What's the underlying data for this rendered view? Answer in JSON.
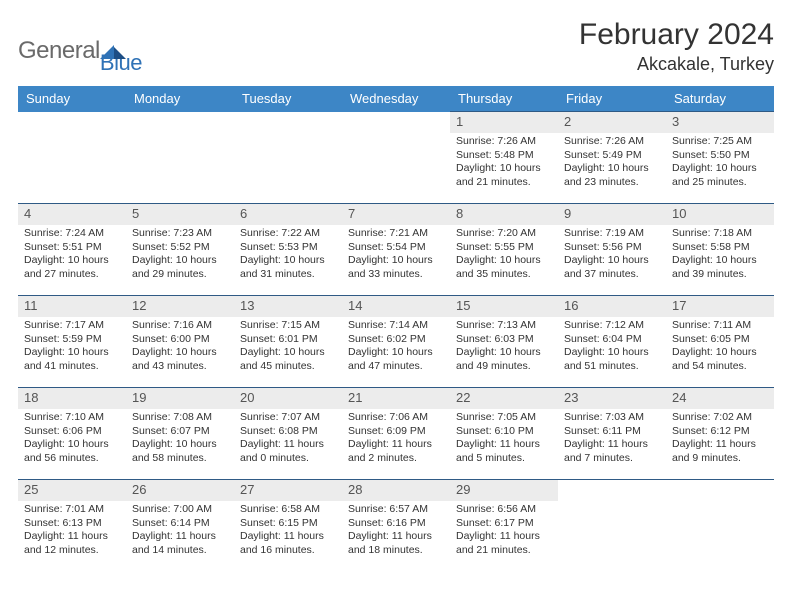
{
  "brand": {
    "part1": "General",
    "part2": "Blue"
  },
  "title": {
    "month": "February 2024",
    "location": "Akcakale, Turkey"
  },
  "colors": {
    "header_bg": "#3d86c6",
    "rule": "#2f5a85",
    "daynum_bg": "#ececec",
    "text": "#333333"
  },
  "daysOfWeek": [
    "Sunday",
    "Monday",
    "Tuesday",
    "Wednesday",
    "Thursday",
    "Friday",
    "Saturday"
  ],
  "weeks": [
    [
      null,
      null,
      null,
      null,
      {
        "n": "1",
        "sr": "Sunrise: 7:26 AM",
        "ss": "Sunset: 5:48 PM",
        "d1": "Daylight: 10 hours",
        "d2": "and 21 minutes."
      },
      {
        "n": "2",
        "sr": "Sunrise: 7:26 AM",
        "ss": "Sunset: 5:49 PM",
        "d1": "Daylight: 10 hours",
        "d2": "and 23 minutes."
      },
      {
        "n": "3",
        "sr": "Sunrise: 7:25 AM",
        "ss": "Sunset: 5:50 PM",
        "d1": "Daylight: 10 hours",
        "d2": "and 25 minutes."
      }
    ],
    [
      {
        "n": "4",
        "sr": "Sunrise: 7:24 AM",
        "ss": "Sunset: 5:51 PM",
        "d1": "Daylight: 10 hours",
        "d2": "and 27 minutes."
      },
      {
        "n": "5",
        "sr": "Sunrise: 7:23 AM",
        "ss": "Sunset: 5:52 PM",
        "d1": "Daylight: 10 hours",
        "d2": "and 29 minutes."
      },
      {
        "n": "6",
        "sr": "Sunrise: 7:22 AM",
        "ss": "Sunset: 5:53 PM",
        "d1": "Daylight: 10 hours",
        "d2": "and 31 minutes."
      },
      {
        "n": "7",
        "sr": "Sunrise: 7:21 AM",
        "ss": "Sunset: 5:54 PM",
        "d1": "Daylight: 10 hours",
        "d2": "and 33 minutes."
      },
      {
        "n": "8",
        "sr": "Sunrise: 7:20 AM",
        "ss": "Sunset: 5:55 PM",
        "d1": "Daylight: 10 hours",
        "d2": "and 35 minutes."
      },
      {
        "n": "9",
        "sr": "Sunrise: 7:19 AM",
        "ss": "Sunset: 5:56 PM",
        "d1": "Daylight: 10 hours",
        "d2": "and 37 minutes."
      },
      {
        "n": "10",
        "sr": "Sunrise: 7:18 AM",
        "ss": "Sunset: 5:58 PM",
        "d1": "Daylight: 10 hours",
        "d2": "and 39 minutes."
      }
    ],
    [
      {
        "n": "11",
        "sr": "Sunrise: 7:17 AM",
        "ss": "Sunset: 5:59 PM",
        "d1": "Daylight: 10 hours",
        "d2": "and 41 minutes."
      },
      {
        "n": "12",
        "sr": "Sunrise: 7:16 AM",
        "ss": "Sunset: 6:00 PM",
        "d1": "Daylight: 10 hours",
        "d2": "and 43 minutes."
      },
      {
        "n": "13",
        "sr": "Sunrise: 7:15 AM",
        "ss": "Sunset: 6:01 PM",
        "d1": "Daylight: 10 hours",
        "d2": "and 45 minutes."
      },
      {
        "n": "14",
        "sr": "Sunrise: 7:14 AM",
        "ss": "Sunset: 6:02 PM",
        "d1": "Daylight: 10 hours",
        "d2": "and 47 minutes."
      },
      {
        "n": "15",
        "sr": "Sunrise: 7:13 AM",
        "ss": "Sunset: 6:03 PM",
        "d1": "Daylight: 10 hours",
        "d2": "and 49 minutes."
      },
      {
        "n": "16",
        "sr": "Sunrise: 7:12 AM",
        "ss": "Sunset: 6:04 PM",
        "d1": "Daylight: 10 hours",
        "d2": "and 51 minutes."
      },
      {
        "n": "17",
        "sr": "Sunrise: 7:11 AM",
        "ss": "Sunset: 6:05 PM",
        "d1": "Daylight: 10 hours",
        "d2": "and 54 minutes."
      }
    ],
    [
      {
        "n": "18",
        "sr": "Sunrise: 7:10 AM",
        "ss": "Sunset: 6:06 PM",
        "d1": "Daylight: 10 hours",
        "d2": "and 56 minutes."
      },
      {
        "n": "19",
        "sr": "Sunrise: 7:08 AM",
        "ss": "Sunset: 6:07 PM",
        "d1": "Daylight: 10 hours",
        "d2": "and 58 minutes."
      },
      {
        "n": "20",
        "sr": "Sunrise: 7:07 AM",
        "ss": "Sunset: 6:08 PM",
        "d1": "Daylight: 11 hours",
        "d2": "and 0 minutes."
      },
      {
        "n": "21",
        "sr": "Sunrise: 7:06 AM",
        "ss": "Sunset: 6:09 PM",
        "d1": "Daylight: 11 hours",
        "d2": "and 2 minutes."
      },
      {
        "n": "22",
        "sr": "Sunrise: 7:05 AM",
        "ss": "Sunset: 6:10 PM",
        "d1": "Daylight: 11 hours",
        "d2": "and 5 minutes."
      },
      {
        "n": "23",
        "sr": "Sunrise: 7:03 AM",
        "ss": "Sunset: 6:11 PM",
        "d1": "Daylight: 11 hours",
        "d2": "and 7 minutes."
      },
      {
        "n": "24",
        "sr": "Sunrise: 7:02 AM",
        "ss": "Sunset: 6:12 PM",
        "d1": "Daylight: 11 hours",
        "d2": "and 9 minutes."
      }
    ],
    [
      {
        "n": "25",
        "sr": "Sunrise: 7:01 AM",
        "ss": "Sunset: 6:13 PM",
        "d1": "Daylight: 11 hours",
        "d2": "and 12 minutes."
      },
      {
        "n": "26",
        "sr": "Sunrise: 7:00 AM",
        "ss": "Sunset: 6:14 PM",
        "d1": "Daylight: 11 hours",
        "d2": "and 14 minutes."
      },
      {
        "n": "27",
        "sr": "Sunrise: 6:58 AM",
        "ss": "Sunset: 6:15 PM",
        "d1": "Daylight: 11 hours",
        "d2": "and 16 minutes."
      },
      {
        "n": "28",
        "sr": "Sunrise: 6:57 AM",
        "ss": "Sunset: 6:16 PM",
        "d1": "Daylight: 11 hours",
        "d2": "and 18 minutes."
      },
      {
        "n": "29",
        "sr": "Sunrise: 6:56 AM",
        "ss": "Sunset: 6:17 PM",
        "d1": "Daylight: 11 hours",
        "d2": "and 21 minutes."
      },
      null,
      null
    ]
  ]
}
